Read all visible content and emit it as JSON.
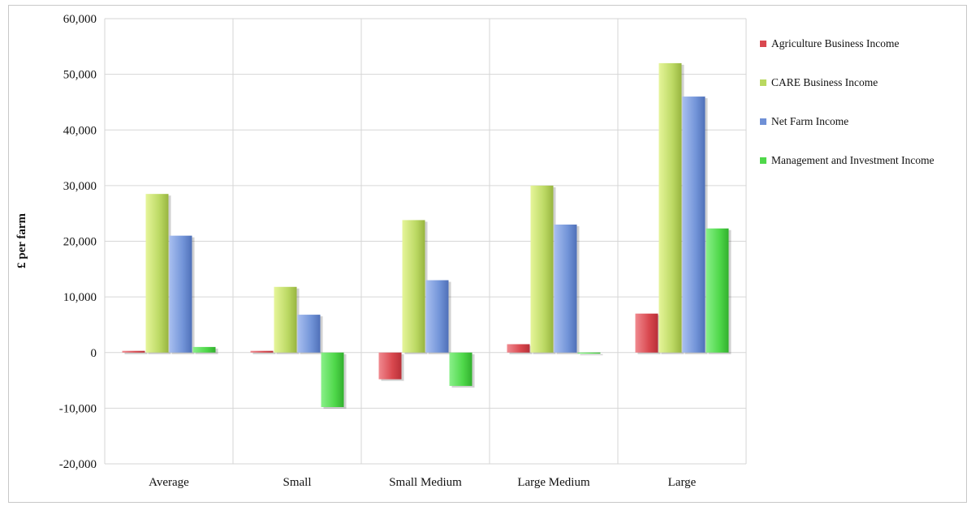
{
  "chart_data": {
    "type": "bar",
    "ylabel": "£ per farm",
    "xlabel": "",
    "ylim": [
      -20000,
      60000
    ],
    "yticks": [
      -20000,
      -10000,
      0,
      10000,
      20000,
      30000,
      40000,
      50000,
      60000
    ],
    "ytick_labels": [
      "-20,000",
      "-10,000",
      "0",
      "10,000",
      "20,000",
      "30,000",
      "40,000",
      "50,000",
      "60,000"
    ],
    "categories": [
      "Average",
      "Small",
      "Small Medium",
      "Large Medium",
      "Large"
    ],
    "series": [
      {
        "name": "Agriculture Business Income",
        "color": "#d9484f",
        "values": [
          300,
          300,
          -4800,
          1500,
          7000
        ]
      },
      {
        "name": "CARE Business Income",
        "color": "#b9d860",
        "values": [
          28500,
          11800,
          23800,
          30000,
          52000
        ]
      },
      {
        "name": "Net Farm Income",
        "color": "#6f90d6",
        "values": [
          21000,
          6800,
          13000,
          23000,
          46000
        ]
      },
      {
        "name": "Management and Investment Income",
        "color": "#4fd84a",
        "values": [
          1000,
          -9800,
          -6000,
          -200,
          22300
        ]
      }
    ],
    "grid": true,
    "legend_position": "right"
  }
}
